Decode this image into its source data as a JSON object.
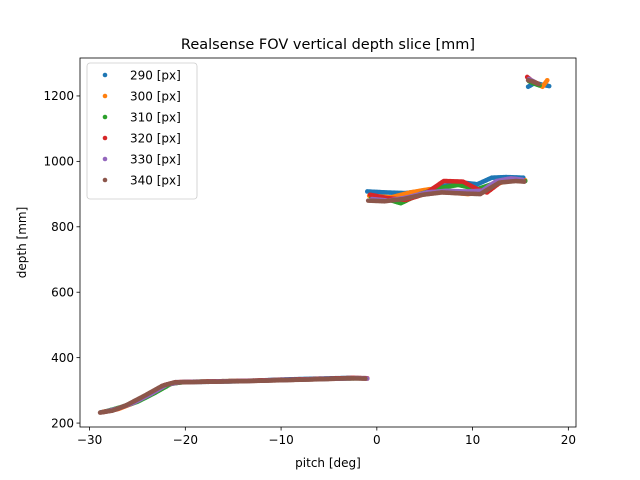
{
  "chart_data": {
    "type": "scatter",
    "title": "Realsense FOV vertical depth slice [mm]",
    "xlabel": "pitch [deg]",
    "ylabel": "depth [mm]",
    "xlim": [
      -31,
      20.8
    ],
    "ylim": [
      188,
      1316
    ],
    "xticks": [
      -30,
      -20,
      -10,
      0,
      10,
      20
    ],
    "xtick_labels": [
      "−30",
      "−20",
      "−10",
      "0",
      "10",
      "20"
    ],
    "yticks": [
      200,
      400,
      600,
      800,
      1000,
      1200
    ],
    "ytick_labels": [
      "200",
      "400",
      "600",
      "800",
      "1000",
      "1200"
    ],
    "grid": false,
    "legend_position": "top-left",
    "series": [
      {
        "name": "290 [px]",
        "color": "#1f77b4",
        "segments": [
          {
            "x": [
              -28.8,
              -27.5,
              -26,
              -24,
              -22,
              -21,
              -18,
              -14,
              -10,
              -6,
              -3,
              -1.1
            ],
            "y": [
              233,
              240,
              255,
              280,
              315,
              325,
              326,
              328,
              333,
              336,
              338,
              337
            ]
          },
          {
            "x": [
              -1,
              1,
              3,
              5,
              7,
              9,
              10.5,
              12,
              13.5,
              15.3
            ],
            "y": [
              908,
              905,
              903,
              910,
              925,
              935,
              930,
              950,
              952,
              950
            ]
          },
          {
            "x": [
              15.8,
              16.5,
              17.2,
              18
            ],
            "y": [
              1228,
              1240,
              1235,
              1230
            ]
          }
        ]
      },
      {
        "name": "300 [px]",
        "color": "#ff7f0e",
        "segments": [
          {
            "x": [
              -28.6,
              -27,
              -25.5,
              -23.5,
              -21.8,
              -20.5,
              -17,
              -13,
              -9,
              -5,
              -2,
              -1
            ],
            "y": [
              234,
              243,
              260,
              288,
              318,
              325,
              327,
              329,
              332,
              335,
              337,
              336
            ]
          },
          {
            "x": [
              -0.8,
              1.5,
              3.5,
              5.5,
              7.5,
              9.5,
              11,
              12.5,
              14,
              15.5
            ],
            "y": [
              895,
              890,
              905,
              915,
              905,
              900,
              905,
              930,
              945,
              942
            ]
          },
          {
            "x": [
              15.9,
              16.6,
              17.3,
              17.8
            ],
            "y": [
              1250,
              1240,
              1228,
              1248
            ]
          }
        ]
      },
      {
        "name": "310 [px]",
        "color": "#2ca02c",
        "segments": [
          {
            "x": [
              -28.4,
              -26.8,
              -25,
              -23.2,
              -21.5,
              -20,
              -16,
              -12,
              -8,
              -4,
              -1.5
            ],
            "y": [
              235,
              248,
              265,
              292,
              320,
              326,
              328,
              330,
              333,
              336,
              337
            ]
          },
          {
            "x": [
              -0.6,
              1,
              2.5,
              4.5,
              6.5,
              8.5,
              10.5,
              12.5,
              14.5,
              15.5
            ],
            "y": [
              892,
              885,
              872,
              900,
              918,
              928,
              915,
              935,
              942,
              940
            ]
          },
          {
            "x": [
              15.9,
              16.4,
              17
            ],
            "y": [
              1245,
              1238,
              1232
            ]
          }
        ]
      },
      {
        "name": "320 [px]",
        "color": "#d62728",
        "segments": [
          {
            "x": [
              -28.5,
              -27.2,
              -25.8,
              -24,
              -22.2,
              -21,
              -18,
              -14,
              -10,
              -6,
              -2.5,
              -1
            ],
            "y": [
              234,
              242,
              258,
              285,
              316,
              325,
              327,
              329,
              332,
              335,
              338,
              337
            ]
          },
          {
            "x": [
              -0.7,
              1,
              3,
              5,
              7,
              9,
              10.5,
              11.5,
              13,
              15.3
            ],
            "y": [
              898,
              888,
              882,
              900,
              940,
              938,
              915,
              905,
              938,
              942
            ]
          },
          {
            "x": [
              15.7,
              16.2,
              16.8
            ],
            "y": [
              1258,
              1246,
              1238
            ]
          }
        ]
      },
      {
        "name": "330 [px]",
        "color": "#9467bd",
        "segments": [
          {
            "x": [
              -28.3,
              -27,
              -25.4,
              -23.6,
              -21.9,
              -20.5,
              -17,
              -13,
              -9,
              -5,
              -2,
              -1
            ],
            "y": [
              235,
              245,
              262,
              289,
              318,
              325,
              327,
              329,
              332,
              335,
              337,
              336
            ]
          },
          {
            "x": [
              -0.5,
              1.2,
              3.2,
              5.2,
              7.2,
              9.2,
              11,
              12.5,
              14,
              15.2
            ],
            "y": [
              885,
              880,
              890,
              905,
              910,
              908,
              910,
              940,
              948,
              944
            ]
          },
          {
            "x": [
              15.9,
              16.5
            ],
            "y": [
              1252,
              1242
            ]
          }
        ]
      },
      {
        "name": "340 [px]",
        "color": "#8c564b",
        "segments": [
          {
            "x": [
              -28.9,
              -27.6,
              -26.2,
              -24.3,
              -22.4,
              -21.2,
              -18,
              -14,
              -10,
              -6,
              -3,
              -1.2
            ],
            "y": [
              232,
              238,
              254,
              283,
              314,
              324,
              326,
              328,
              331,
              334,
              337,
              336
            ]
          },
          {
            "x": [
              -0.9,
              0.8,
              2.8,
              4.8,
              6.8,
              8.8,
              10.8,
              12.8,
              14.5,
              15.4
            ],
            "y": [
              880,
              878,
              885,
              898,
              905,
              902,
              900,
              935,
              940,
              938
            ]
          },
          {
            "x": [
              15.8,
              16.3,
              16.9
            ],
            "y": [
              1248,
              1244,
              1236
            ]
          }
        ]
      }
    ]
  }
}
